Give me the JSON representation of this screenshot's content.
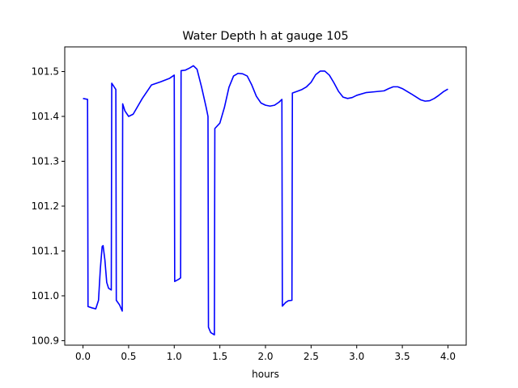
{
  "chart_data": {
    "type": "line",
    "title": "Water Depth h at gauge 105",
    "xlabel": "hours",
    "ylabel": "",
    "xlim": [
      -0.2,
      4.2
    ],
    "ylim": [
      100.89,
      101.555
    ],
    "grid": false,
    "x_ticks": [
      "0.0",
      "0.5",
      "1.0",
      "1.5",
      "2.0",
      "2.5",
      "3.0",
      "3.5",
      "4.0"
    ],
    "y_ticks": [
      "100.9",
      "101.0",
      "101.1",
      "101.2",
      "101.3",
      "101.4",
      "101.5"
    ],
    "series": [
      {
        "color": "#0000ff",
        "points": [
          [
            0.0,
            101.44
          ],
          [
            0.05,
            101.438
          ],
          [
            0.055,
            100.976
          ],
          [
            0.1,
            100.973
          ],
          [
            0.14,
            100.971
          ],
          [
            0.17,
            100.99
          ],
          [
            0.19,
            101.06
          ],
          [
            0.21,
            101.11
          ],
          [
            0.22,
            101.112
          ],
          [
            0.24,
            101.08
          ],
          [
            0.26,
            101.03
          ],
          [
            0.28,
            101.017
          ],
          [
            0.31,
            101.013
          ],
          [
            0.315,
            101.474
          ],
          [
            0.36,
            101.46
          ],
          [
            0.365,
            100.99
          ],
          [
            0.4,
            100.98
          ],
          [
            0.43,
            100.966
          ],
          [
            0.435,
            101.428
          ],
          [
            0.46,
            101.412
          ],
          [
            0.5,
            101.4
          ],
          [
            0.55,
            101.405
          ],
          [
            0.65,
            101.44
          ],
          [
            0.75,
            101.47
          ],
          [
            0.85,
            101.477
          ],
          [
            0.95,
            101.485
          ],
          [
            1.0,
            101.492
          ],
          [
            1.005,
            101.032
          ],
          [
            1.05,
            101.037
          ],
          [
            1.07,
            101.04
          ],
          [
            1.075,
            101.502
          ],
          [
            1.12,
            101.503
          ],
          [
            1.17,
            101.508
          ],
          [
            1.21,
            101.513
          ],
          [
            1.25,
            101.505
          ],
          [
            1.3,
            101.465
          ],
          [
            1.35,
            101.42
          ],
          [
            1.37,
            101.4
          ],
          [
            1.375,
            100.93
          ],
          [
            1.4,
            100.918
          ],
          [
            1.44,
            100.913
          ],
          [
            1.445,
            101.373
          ],
          [
            1.5,
            101.385
          ],
          [
            1.55,
            101.42
          ],
          [
            1.6,
            101.465
          ],
          [
            1.65,
            101.49
          ],
          [
            1.7,
            101.496
          ],
          [
            1.75,
            101.495
          ],
          [
            1.8,
            101.49
          ],
          [
            1.85,
            101.47
          ],
          [
            1.9,
            101.445
          ],
          [
            1.95,
            101.43
          ],
          [
            2.0,
            101.425
          ],
          [
            2.05,
            101.423
          ],
          [
            2.1,
            101.425
          ],
          [
            2.15,
            101.432
          ],
          [
            2.18,
            101.438
          ],
          [
            2.185,
            100.977
          ],
          [
            2.22,
            100.985
          ],
          [
            2.25,
            100.989
          ],
          [
            2.29,
            100.99
          ],
          [
            2.295,
            101.452
          ],
          [
            2.35,
            101.456
          ],
          [
            2.4,
            101.46
          ],
          [
            2.45,
            101.466
          ],
          [
            2.5,
            101.476
          ],
          [
            2.55,
            101.493
          ],
          [
            2.6,
            101.501
          ],
          [
            2.65,
            101.501
          ],
          [
            2.7,
            101.492
          ],
          [
            2.75,
            101.475
          ],
          [
            2.8,
            101.456
          ],
          [
            2.85,
            101.443
          ],
          [
            2.9,
            101.44
          ],
          [
            2.95,
            101.442
          ],
          [
            3.0,
            101.447
          ],
          [
            3.1,
            101.453
          ],
          [
            3.2,
            101.455
          ],
          [
            3.3,
            101.457
          ],
          [
            3.35,
            101.462
          ],
          [
            3.4,
            101.466
          ],
          [
            3.45,
            101.466
          ],
          [
            3.5,
            101.462
          ],
          [
            3.6,
            101.45
          ],
          [
            3.7,
            101.437
          ],
          [
            3.75,
            101.434
          ],
          [
            3.8,
            101.435
          ],
          [
            3.85,
            101.44
          ],
          [
            3.9,
            101.447
          ],
          [
            3.95,
            101.455
          ],
          [
            4.0,
            101.461
          ]
        ]
      }
    ]
  }
}
